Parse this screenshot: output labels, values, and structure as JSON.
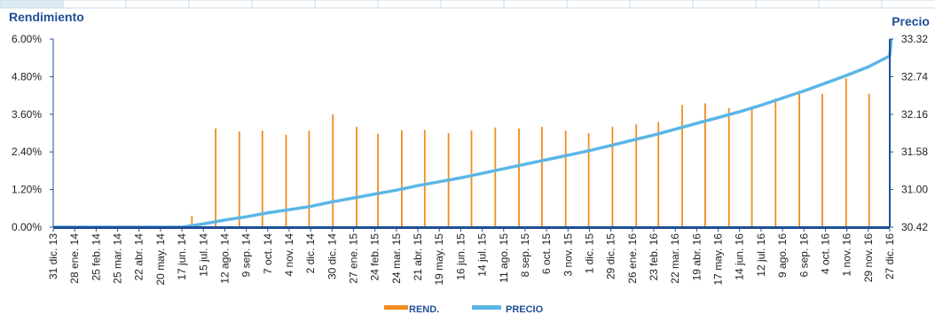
{
  "chart_data": {
    "type": "bar+line",
    "y_left": {
      "title": "Rendimiento",
      "ticks": [
        "0.00%",
        "1.20%",
        "2.40%",
        "3.60%",
        "4.80%",
        "6.00%"
      ],
      "range": [
        0,
        6
      ]
    },
    "y_right": {
      "title": "Precio",
      "ticks": [
        "30.42",
        "31.00",
        "31.58",
        "32.16",
        "32.74",
        "33.32"
      ],
      "range": [
        30.42,
        33.32
      ]
    },
    "x_labels": [
      "31 dic. 13",
      "28 ene. 14",
      "25 feb. 14",
      "25 mar. 14",
      "22 abr. 14",
      "20 may. 14",
      "17 jun. 14",
      "15 jul. 14",
      "12 ago. 14",
      "9 sep. 14",
      "7 oct. 14",
      "4 nov. 14",
      "2 dic. 14",
      "30 dic. 14",
      "27 ene. 15",
      "24 feb. 15",
      "24 mar. 15",
      "21 abr. 15",
      "19 may. 15",
      "16 jun. 15",
      "14 jul. 15",
      "11 ago. 15",
      "8 sep. 15",
      "6 oct. 15",
      "3 nov. 15",
      "1 dic. 15",
      "29 dic. 15",
      "26 ene. 16",
      "23 feb. 16",
      "22 mar. 16",
      "19 abr. 16",
      "17 may. 16",
      "14 jun. 16",
      "12 jul. 16",
      "9 ago. 16",
      "6 sep. 16",
      "4 oct. 16",
      "1 nov. 16",
      "29 nov. 16",
      "27 dic. 16"
    ],
    "series": [
      {
        "name": "REND.",
        "axis": "left",
        "kind": "bar",
        "color": "#f28c1e",
        "points": [
          {
            "x": "30 jun. 14",
            "y": 0.35
          },
          {
            "x": "31 jul. 14",
            "y": 3.15
          },
          {
            "x": "31 ago. 14",
            "y": 3.05
          },
          {
            "x": "30 sep. 14",
            "y": 3.08
          },
          {
            "x": "31 oct. 14",
            "y": 2.95
          },
          {
            "x": "30 nov. 14",
            "y": 3.08
          },
          {
            "x": "31 dic. 14",
            "y": 3.6
          },
          {
            "x": "31 ene. 15",
            "y": 3.2
          },
          {
            "x": "28 feb. 15",
            "y": 2.98
          },
          {
            "x": "31 mar. 15",
            "y": 3.1
          },
          {
            "x": "30 abr. 15",
            "y": 3.1
          },
          {
            "x": "31 may. 15",
            "y": 3.0
          },
          {
            "x": "30 jun. 15",
            "y": 3.08
          },
          {
            "x": "31 jul. 15",
            "y": 3.18
          },
          {
            "x": "31 ago. 15",
            "y": 3.15
          },
          {
            "x": "30 sep. 15",
            "y": 3.2
          },
          {
            "x": "31 oct. 15",
            "y": 3.08
          },
          {
            "x": "30 nov. 15",
            "y": 3.0
          },
          {
            "x": "31 dic. 15",
            "y": 3.2
          },
          {
            "x": "31 ene. 16",
            "y": 3.28
          },
          {
            "x": "29 feb. 16",
            "y": 3.35
          },
          {
            "x": "31 mar. 16",
            "y": 3.9
          },
          {
            "x": "30 abr. 16",
            "y": 3.95
          },
          {
            "x": "31 may. 16",
            "y": 3.8
          },
          {
            "x": "30 jun. 16",
            "y": 3.85
          },
          {
            "x": "31 jul. 16",
            "y": 4.1
          },
          {
            "x": "31 ago. 16",
            "y": 4.35
          },
          {
            "x": "30 sep. 16",
            "y": 4.25
          },
          {
            "x": "31 oct. 16",
            "y": 4.75
          },
          {
            "x": "30 nov. 16",
            "y": 4.25
          }
        ]
      },
      {
        "name": "PRECIO",
        "axis": "right",
        "kind": "line",
        "color": "#5bb6e6",
        "points": [
          {
            "x": "31 dic. 13",
            "y": 30.42
          },
          {
            "x": "17 jun. 14",
            "y": 30.42
          },
          {
            "x": "15 jul. 14",
            "y": 30.47
          },
          {
            "x": "12 ago. 14",
            "y": 30.53
          },
          {
            "x": "9 sep. 14",
            "y": 30.58
          },
          {
            "x": "7 oct. 14",
            "y": 30.64
          },
          {
            "x": "4 nov. 14",
            "y": 30.69
          },
          {
            "x": "2 dic. 14",
            "y": 30.74
          },
          {
            "x": "30 dic. 14",
            "y": 30.81
          },
          {
            "x": "27 ene. 15",
            "y": 30.87
          },
          {
            "x": "24 feb. 15",
            "y": 30.93
          },
          {
            "x": "24 mar. 15",
            "y": 30.99
          },
          {
            "x": "21 abr. 15",
            "y": 31.06
          },
          {
            "x": "19 may. 15",
            "y": 31.12
          },
          {
            "x": "16 jun. 15",
            "y": 31.18
          },
          {
            "x": "14 jul. 15",
            "y": 31.25
          },
          {
            "x": "11 ago. 15",
            "y": 31.32
          },
          {
            "x": "8 sep. 15",
            "y": 31.39
          },
          {
            "x": "6 oct. 15",
            "y": 31.46
          },
          {
            "x": "3 nov. 15",
            "y": 31.53
          },
          {
            "x": "1 dic. 15",
            "y": 31.6
          },
          {
            "x": "29 dic. 15",
            "y": 31.68
          },
          {
            "x": "26 ene. 16",
            "y": 31.76
          },
          {
            "x": "23 feb. 16",
            "y": 31.84
          },
          {
            "x": "22 mar. 16",
            "y": 31.93
          },
          {
            "x": "19 abr. 16",
            "y": 32.02
          },
          {
            "x": "17 may. 16",
            "y": 32.11
          },
          {
            "x": "14 jun. 16",
            "y": 32.2
          },
          {
            "x": "12 jul. 16",
            "y": 32.3
          },
          {
            "x": "9 ago. 16",
            "y": 32.41
          },
          {
            "x": "6 sep. 16",
            "y": 32.52
          },
          {
            "x": "4 oct. 16",
            "y": 32.64
          },
          {
            "x": "1 nov. 16",
            "y": 32.76
          },
          {
            "x": "29 nov. 16",
            "y": 32.89
          },
          {
            "x": "27 dic. 16",
            "y": 33.06
          },
          {
            "x": "29 dic. 16",
            "y": 33.32
          }
        ]
      }
    ],
    "grid": false,
    "legend_position": "bottom-center"
  }
}
